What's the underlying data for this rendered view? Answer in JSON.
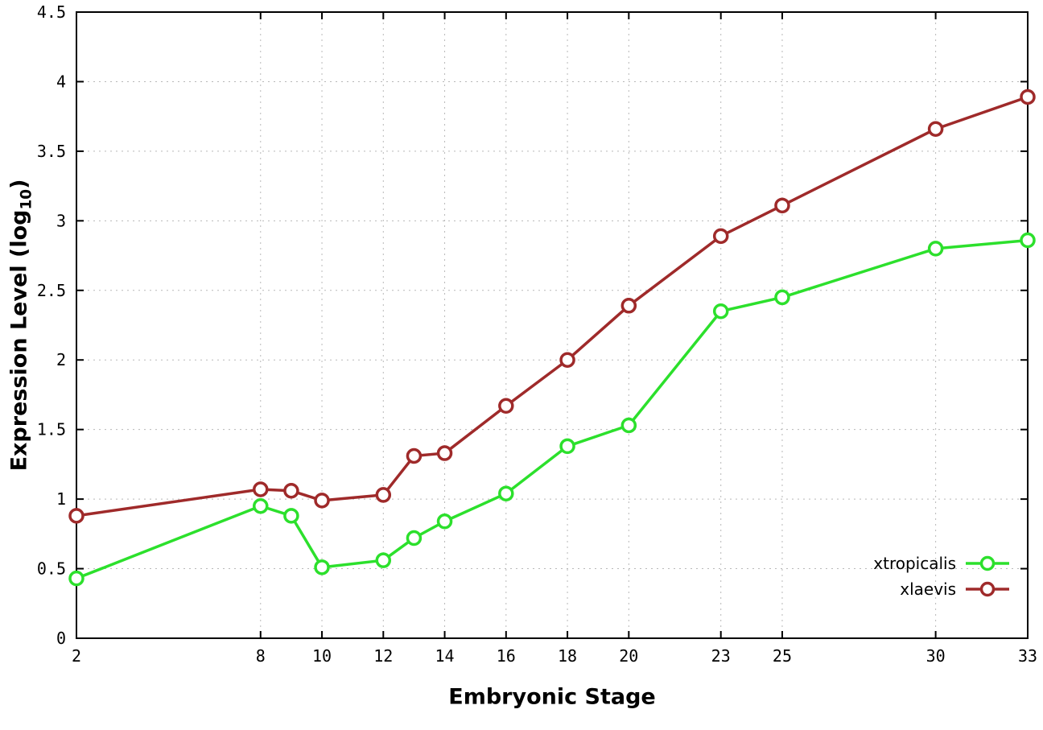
{
  "chart_data": {
    "type": "line",
    "title": "",
    "xlabel": "Embryonic Stage",
    "ylabel_prefix": "Expression Level (log",
    "ylabel_sub": "10",
    "ylabel_suffix": ")",
    "xlim": [
      2,
      33
    ],
    "ylim": [
      0,
      4.5
    ],
    "grid": true,
    "legend_position": "bottom-right-inside",
    "xticks": {
      "values": [
        2,
        8,
        10,
        12,
        14,
        16,
        18,
        20,
        23,
        25,
        30,
        33
      ],
      "labels": [
        "2",
        "8",
        "10",
        "12",
        "14",
        "16",
        "18",
        "20",
        "23",
        "25",
        "30",
        "33"
      ]
    },
    "yticks": {
      "values": [
        0,
        0.5,
        1,
        1.5,
        2,
        2.5,
        3,
        3.5,
        4,
        4.5
      ],
      "labels": [
        "0",
        "0.5",
        "1",
        "1.5",
        "2",
        "2.5",
        "3",
        "3.5",
        "4",
        "4.5"
      ]
    },
    "x": [
      2,
      8,
      9,
      10,
      12,
      13,
      14,
      16,
      18,
      20,
      23,
      25,
      30,
      33
    ],
    "series": [
      {
        "name": "xtropicalis",
        "color": "#2ce02c",
        "values": [
          0.43,
          0.95,
          0.88,
          0.51,
          0.56,
          0.72,
          0.84,
          1.04,
          1.38,
          1.53,
          2.35,
          2.45,
          2.8,
          2.86
        ]
      },
      {
        "name": "xlaevis",
        "color": "#9f2a2a",
        "values": [
          0.88,
          1.07,
          1.06,
          0.99,
          1.03,
          1.31,
          1.33,
          1.67,
          2.0,
          2.39,
          2.89,
          3.11,
          3.66,
          3.89
        ]
      }
    ]
  },
  "colors": {
    "background": "#ffffff",
    "axis": "#000000",
    "grid": "#b8b8b8",
    "tick_text": "#000000",
    "marker_fill": "#ffffff"
  }
}
